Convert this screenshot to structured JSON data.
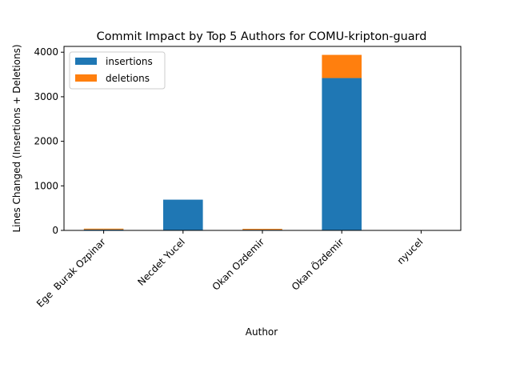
{
  "chart_data": {
    "type": "bar",
    "stacked": true,
    "title": "Commit Impact by Top 5 Authors for COMU-kripton-guard",
    "xlabel": "Author",
    "ylabel": "Lines Changed (Insertions + Deletions)",
    "categories": [
      "Ege  Burak Ozpinar",
      "Necdet Yucel",
      "Okan Ozdemir",
      "Okan Özdemir",
      "nyucel"
    ],
    "series": [
      {
        "name": "insertions",
        "color": "#1f77b4",
        "values": [
          20,
          690,
          15,
          3420,
          0
        ]
      },
      {
        "name": "deletions",
        "color": "#ff7f0e",
        "values": [
          20,
          0,
          20,
          520,
          0
        ]
      }
    ],
    "ylim": [
      0,
      4130
    ],
    "yticks": [
      0,
      1000,
      2000,
      3000,
      4000
    ],
    "legend": "top-left",
    "grid": false
  }
}
